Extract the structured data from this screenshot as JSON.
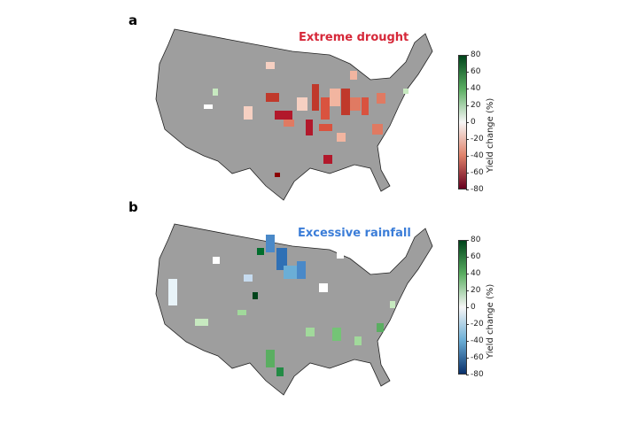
{
  "panels": [
    {
      "label": "a",
      "title": "Extreme drought",
      "title_color": "#d62839",
      "colorbar": {
        "label": "Yield change (%)",
        "ticks": [
          "80",
          "60",
          "40",
          "20",
          "0",
          "-20",
          "-40",
          "-60",
          "-80"
        ],
        "colors": [
          "#00441b",
          "#5aae61",
          "#f7f7f7",
          "#e0826a",
          "#67001f"
        ]
      }
    },
    {
      "label": "b",
      "title": "Excessive rainfall",
      "title_color": "#3b7dd8",
      "colorbar": {
        "label": "Yield change (%)",
        "ticks": [
          "80",
          "60",
          "40",
          "20",
          "0",
          "-20",
          "-40",
          "-60",
          "-80"
        ],
        "colors": [
          "#00441b",
          "#5aae61",
          "#f7f7f7",
          "#6baed6",
          "#08306b"
        ]
      }
    }
  ],
  "map_fill": "#9e9e9e"
}
